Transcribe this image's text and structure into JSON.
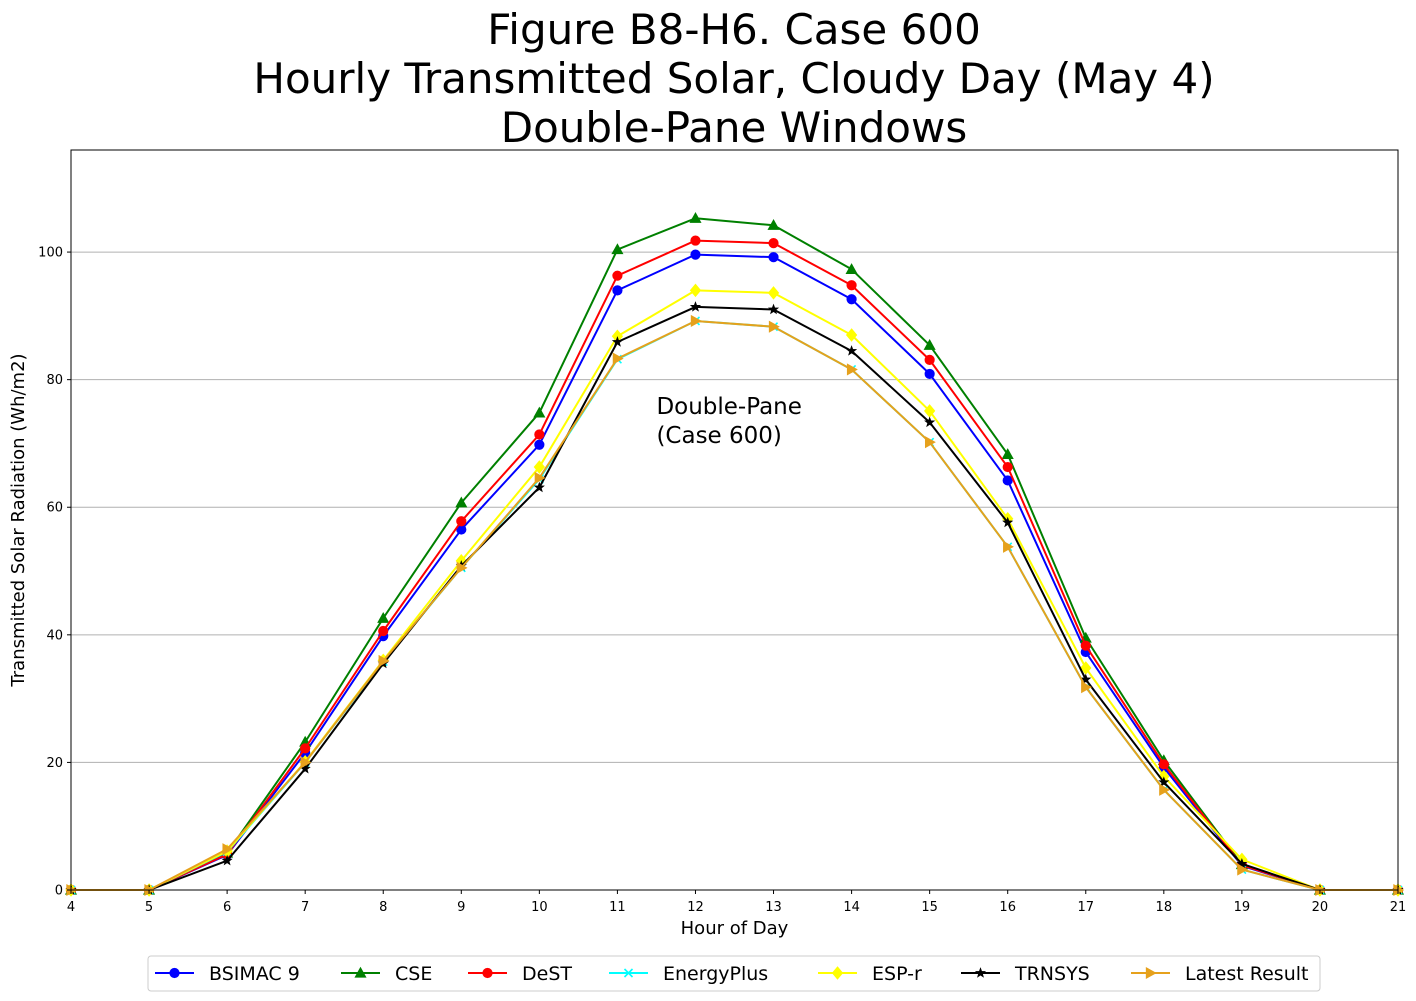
{
  "chart_data": {
    "type": "line",
    "title_lines": [
      "Figure B8-H6. Case 600",
      "Hourly Transmitted Solar, Cloudy Day (May 4)",
      "Double-Pane Windows"
    ],
    "xlabel": "Hour of Day",
    "ylabel": "Transmitted Solar Radiation (Wh/m2)",
    "xlim": [
      4,
      21
    ],
    "ylim": [
      0,
      116
    ],
    "xticks": [
      4,
      5,
      6,
      7,
      8,
      9,
      10,
      11,
      12,
      13,
      14,
      15,
      16,
      17,
      18,
      19,
      20,
      21
    ],
    "yticks": [
      0,
      20,
      40,
      60,
      80,
      100
    ],
    "grid": "horizontal",
    "legend_position": "bottom-center",
    "annotation": {
      "lines": [
        "Double-Pane",
        "(Case 600)"
      ],
      "x": 11.5,
      "y": 75
    },
    "x": [
      4,
      5,
      6,
      7,
      8,
      9,
      10,
      11,
      12,
      13,
      14,
      15,
      16,
      17,
      18,
      19,
      20,
      21
    ],
    "series": [
      {
        "name": "BSIMAC 9",
        "color": "#0000ff",
        "marker": "circle",
        "values": [
          0,
          0,
          5.5,
          21.5,
          39.8,
          56.5,
          69.8,
          94.0,
          99.6,
          99.2,
          92.6,
          80.9,
          64.2,
          37.3,
          19.2,
          3.8,
          0,
          0
        ]
      },
      {
        "name": "CSE",
        "color": "#008000",
        "marker": "triangle-up",
        "values": [
          0,
          0,
          5.8,
          23.2,
          42.6,
          60.7,
          74.8,
          100.4,
          105.3,
          104.2,
          97.3,
          85.4,
          68.3,
          39.5,
          20.3,
          4.0,
          0,
          0
        ]
      },
      {
        "name": "DeST",
        "color": "#ff0000",
        "marker": "circle",
        "values": [
          0,
          0,
          5.6,
          22.2,
          40.6,
          57.8,
          71.4,
          96.3,
          101.8,
          101.4,
          94.8,
          83.1,
          66.3,
          38.3,
          19.7,
          3.9,
          0,
          0
        ]
      },
      {
        "name": "EnergyPlus",
        "color": "#00ffff",
        "marker": "x",
        "values": [
          0,
          0,
          6.0,
          20.0,
          35.8,
          50.5,
          64.4,
          83.2,
          89.2,
          88.3,
          81.6,
          70.2,
          53.8,
          31.8,
          15.7,
          3.2,
          0,
          0
        ]
      },
      {
        "name": "ESP-r",
        "color": "#ffff00",
        "marker": "diamond",
        "values": [
          0,
          0,
          6.1,
          20.1,
          36.0,
          51.6,
          66.3,
          86.8,
          94.0,
          93.6,
          87.0,
          75.1,
          58.2,
          34.8,
          17.8,
          4.8,
          0,
          0
        ]
      },
      {
        "name": "TRNSYS",
        "color": "#000000",
        "marker": "star",
        "values": [
          0,
          0,
          4.6,
          19.0,
          35.5,
          50.8,
          63.1,
          85.9,
          91.4,
          91.0,
          84.5,
          73.3,
          57.6,
          33.0,
          16.9,
          4.1,
          0,
          0
        ]
      },
      {
        "name": "Latest Result",
        "color": "#e6a11c",
        "marker": "triangle-right",
        "values": [
          0,
          0,
          6.4,
          20.0,
          35.9,
          50.5,
          64.6,
          83.3,
          89.2,
          88.3,
          81.6,
          70.2,
          53.8,
          31.8,
          15.7,
          3.2,
          0,
          0
        ]
      }
    ]
  }
}
